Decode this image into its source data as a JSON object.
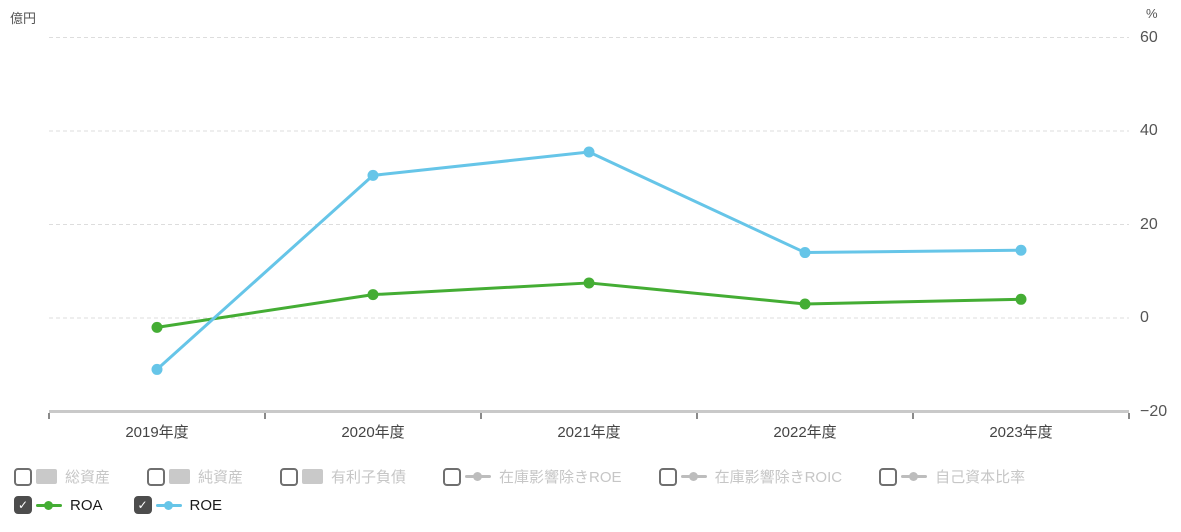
{
  "chart_data": {
    "type": "line",
    "title": "",
    "categories": [
      "2019年度",
      "2020年度",
      "2021年度",
      "2022年度",
      "2023年度"
    ],
    "series": [
      {
        "name": "ROA",
        "color": "#44ad34",
        "values": [
          -2,
          5,
          7.5,
          3,
          4
        ]
      },
      {
        "name": "ROE",
        "color": "#66c5e8",
        "values": [
          -11,
          30.5,
          35.5,
          14,
          14.5
        ]
      }
    ],
    "left_axis": {
      "unit": "億円",
      "ticks": []
    },
    "right_axis": {
      "unit": "%",
      "ticks": [
        60,
        40,
        20,
        0,
        -20
      ],
      "tick_labels": [
        "60",
        "40",
        "20",
        "0",
        "−20"
      ],
      "range": [
        -20,
        60
      ]
    },
    "grid": "horizontal-dashed",
    "legend_position": "bottom"
  },
  "legend": {
    "check_glyph": "✓",
    "checkbox_checked_bg": "#4d4d4d",
    "row1": {
      "items": [
        {
          "label": "総資産",
          "checked": false,
          "marker": "bar",
          "color": "#c9c9c9"
        },
        {
          "label": "純資産",
          "checked": false,
          "marker": "bar",
          "color": "#c9c9c9"
        },
        {
          "label": "有利子負債",
          "checked": false,
          "marker": "bar",
          "color": "#c9c9c9"
        },
        {
          "label": "在庫影響除きROE",
          "checked": false,
          "marker": "line",
          "color": "#bdbdbd"
        },
        {
          "label": "在庫影響除きROIC",
          "checked": false,
          "marker": "line",
          "color": "#bdbdbd"
        },
        {
          "label": "自己資本比率",
          "checked": false,
          "marker": "line",
          "color": "#bdbdbd"
        }
      ]
    },
    "row2": {
      "items": [
        {
          "label": "ROA",
          "checked": true,
          "marker": "line",
          "color": "#44ad34"
        },
        {
          "label": "ROE",
          "checked": true,
          "marker": "line",
          "color": "#66c5e8"
        }
      ]
    }
  },
  "colors": {
    "grid": "#dddddd",
    "axis_line": "#c9c9c9",
    "tick": "#8a8a8a",
    "axis_text": "#555555",
    "disabled_text": "#c6c6c6",
    "enabled_text": "#1a1a1a"
  }
}
